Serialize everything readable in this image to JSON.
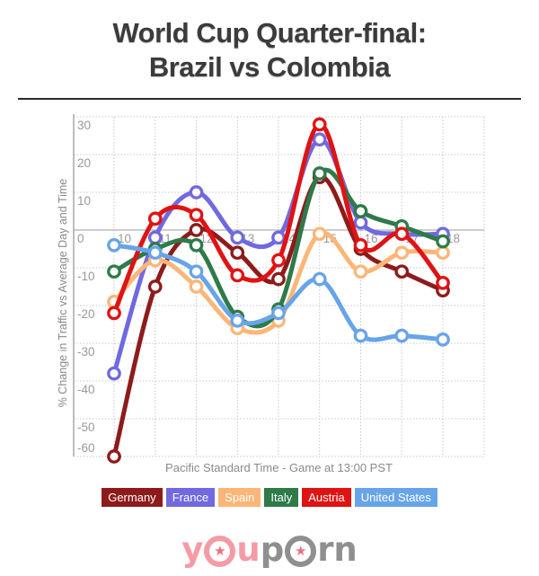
{
  "title": {
    "line1": "World Cup Quarter-final:",
    "line2": "Brazil vs Colombia"
  },
  "chart_data": {
    "type": "line",
    "x": [
      10,
      11,
      12,
      13,
      14,
      15,
      16,
      17,
      18
    ],
    "x_tick_labels": [
      "10",
      "11",
      "12",
      "13",
      "14",
      "15",
      "16",
      "17",
      "18"
    ],
    "y_ticks": [
      30,
      20,
      10,
      0,
      -10,
      -20,
      -30,
      -40,
      -50,
      -60
    ],
    "ylim": [
      -60,
      30
    ],
    "xlabel": "Pacific Standard Time - Game at 13:00 PST",
    "ylabel": "% Change in Traffic vs Average Day and Time",
    "grid": "dotted",
    "legend_position": "bottom",
    "marker": "open-circle",
    "series": [
      {
        "name": "Germany",
        "color": "#8e1b1b",
        "values": [
          -60,
          -15,
          0,
          -6,
          -13,
          14,
          -5,
          -11,
          -16
        ]
      },
      {
        "name": "France",
        "color": "#7169df",
        "values": [
          -38,
          -2,
          10,
          -2,
          -2,
          24,
          2,
          -1,
          -1
        ]
      },
      {
        "name": "Spain",
        "color": "#fbb678",
        "values": [
          -19,
          -8,
          -15,
          -26,
          -24,
          -1,
          -11,
          -6,
          -6
        ]
      },
      {
        "name": "Italy",
        "color": "#2e7a4a",
        "values": [
          -11,
          -5,
          -4,
          -23,
          -21,
          15,
          5,
          1,
          -3
        ]
      },
      {
        "name": "Austria",
        "color": "#e01313",
        "values": [
          -22,
          3,
          4,
          -12,
          -8,
          28,
          -4,
          -1,
          -14
        ]
      },
      {
        "name": "United States",
        "color": "#68a4e8",
        "values": [
          -4,
          -6,
          -11,
          -24,
          -22,
          -13,
          -28,
          -28,
          -29
        ]
      }
    ]
  },
  "logo": {
    "you_y": "y",
    "you_u": "u",
    "porn_p": "p",
    "porn_rn": "rn",
    "star": "★"
  }
}
